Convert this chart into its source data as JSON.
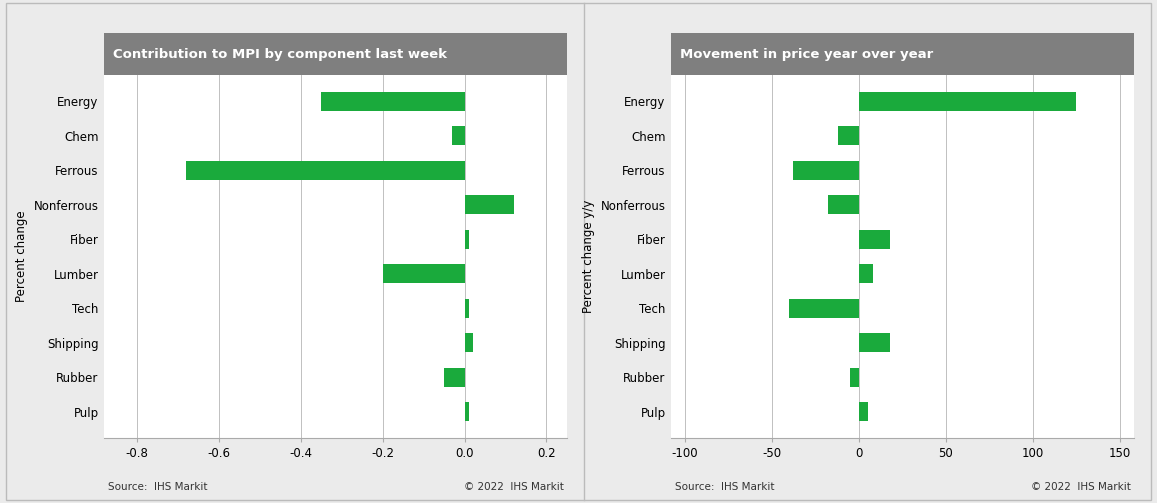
{
  "categories": [
    "Energy",
    "Chem",
    "Ferrous",
    "Nonferrous",
    "Fiber",
    "Lumber",
    "Tech",
    "Shipping",
    "Rubber",
    "Pulp"
  ],
  "left_values": [
    -0.35,
    -0.03,
    -0.68,
    0.12,
    0.01,
    -0.2,
    0.01,
    0.02,
    -0.05,
    0.01
  ],
  "right_values": [
    125.0,
    -12.0,
    -38.0,
    -18.0,
    18.0,
    8.0,
    -40.0,
    18.0,
    -5.0,
    5.0
  ],
  "left_title": "Contribution to MPI by component last week",
  "right_title": "Movement in price year over year",
  "left_ylabel": "Percent change",
  "right_ylabel": "Percent change y/y",
  "left_xlim": [
    -0.88,
    0.25
  ],
  "right_xlim": [
    -108,
    158
  ],
  "left_xticks": [
    -0.8,
    -0.6,
    -0.4,
    -0.2,
    0.0,
    0.2
  ],
  "right_xticks": [
    -100,
    -50,
    0,
    50,
    100,
    150
  ],
  "bar_color": "#1aaa3c",
  "background_color": "#ebebeb",
  "plot_background": "#ffffff",
  "title_bg_color": "#7f7f7f",
  "title_text_color": "#ffffff",
  "source_text": "Source:  IHS Markit",
  "copyright_text": "© 2022  IHS Markit",
  "grid_color": "#c0c0c0",
  "spine_color": "#aaaaaa",
  "tick_label_fontsize": 8.5,
  "ylabel_fontsize": 8.5,
  "title_fontsize": 9.5,
  "source_fontsize": 7.5
}
